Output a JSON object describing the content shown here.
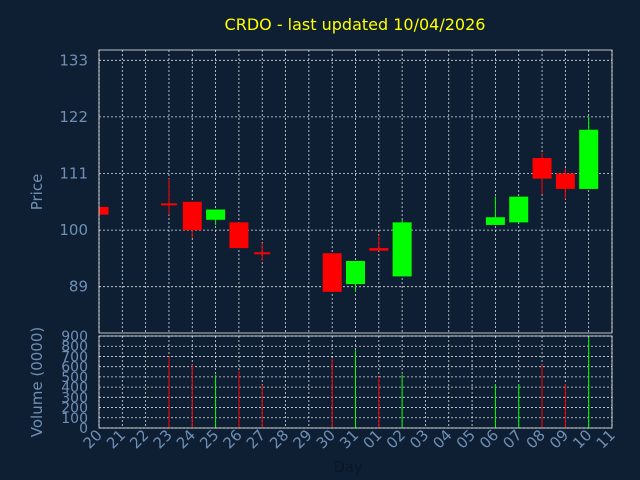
{
  "chart_data": {
    "type": "candlestick",
    "title": "CRDO - last updated 10/04/2026",
    "ylabel": "Price",
    "volume_label": "Volume (0000)",
    "xlabel": "Day",
    "price_ticks": [
      89,
      100,
      111,
      122,
      133
    ],
    "price_ylim": [
      80,
      135
    ],
    "volume_ticks": [
      0,
      100,
      200,
      300,
      400,
      500,
      600,
      700,
      800,
      900
    ],
    "volume_ylim": [
      0,
      900
    ],
    "x_ticks": [
      "20",
      "21",
      "22",
      "23",
      "24",
      "25",
      "26",
      "27",
      "28",
      "29",
      "30",
      "31",
      "01",
      "02",
      "03",
      "04",
      "05",
      "06",
      "07",
      "08",
      "09",
      "10",
      "11"
    ],
    "colors": {
      "up": "#00ff00",
      "down": "#ff0000",
      "background": "#0f1f33",
      "title": "#ffff00",
      "labels": "#6f8fb5"
    },
    "candles": [
      {
        "day": "20",
        "open": 104.5,
        "high": 104.5,
        "low": 103,
        "close": 103,
        "volume": 0
      },
      {
        "day": "23",
        "open": 105,
        "high": 110,
        "low": 103,
        "close": 105,
        "volume": 700
      },
      {
        "day": "24",
        "open": 105.5,
        "high": 105.5,
        "low": 98.5,
        "close": 100,
        "volume": 620
      },
      {
        "day": "25",
        "open": 102,
        "high": 104,
        "low": 101,
        "close": 104,
        "volume": 520
      },
      {
        "day": "26",
        "open": 101.5,
        "high": 101.5,
        "low": 96.5,
        "close": 96.5,
        "volume": 560
      },
      {
        "day": "27",
        "open": 95.5,
        "high": 97.5,
        "low": 94,
        "close": 95.5,
        "volume": 420
      },
      {
        "day": "30",
        "open": 95.5,
        "high": 95.5,
        "low": 88,
        "close": 88,
        "volume": 680
      },
      {
        "day": "31",
        "open": 89.5,
        "high": 94,
        "low": 88,
        "close": 94,
        "volume": 760
      },
      {
        "day": "01",
        "open": 96.5,
        "high": 99,
        "low": 96,
        "close": 96,
        "volume": 500
      },
      {
        "day": "02",
        "open": 91,
        "high": 102,
        "low": 91,
        "close": 101.5,
        "volume": 520
      },
      {
        "day": "06",
        "open": 101,
        "high": 106.5,
        "low": 101,
        "close": 102.5,
        "volume": 430
      },
      {
        "day": "07",
        "open": 101.5,
        "high": 106.5,
        "low": 101.5,
        "close": 106.5,
        "volume": 430
      },
      {
        "day": "08",
        "open": 114,
        "high": 115,
        "low": 107,
        "close": 110,
        "volume": 620
      },
      {
        "day": "09",
        "open": 111,
        "high": 112,
        "low": 106,
        "close": 108,
        "volume": 430
      },
      {
        "day": "10",
        "open": 108,
        "high": 122,
        "low": 108,
        "close": 119.5,
        "volume": 880
      }
    ]
  }
}
